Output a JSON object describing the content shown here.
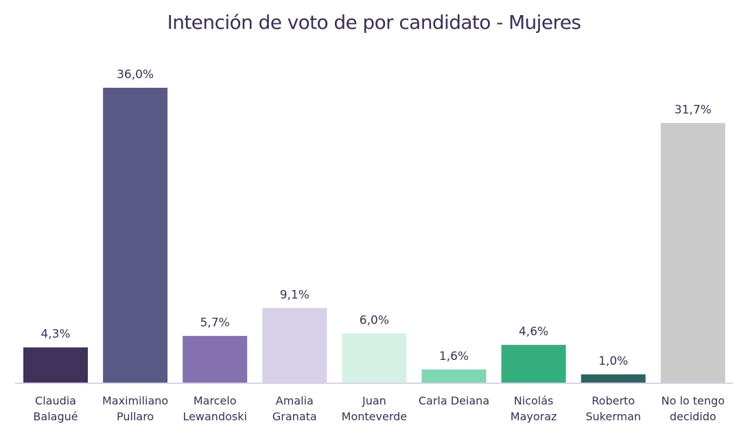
{
  "chart_data": {
    "type": "bar",
    "title": "Intención de voto de por candidato - Mujeres",
    "xlabel": "",
    "ylabel": "",
    "ylim": [
      0,
      36
    ],
    "grid": false,
    "legend": "none",
    "categories": [
      [
        "Claudia",
        "Balagué"
      ],
      [
        "Maximiliano",
        "Pullaro"
      ],
      [
        "Marcelo",
        "Lewandoski"
      ],
      [
        "Amalia",
        "Granata"
      ],
      [
        "Juan",
        "Monteverde"
      ],
      [
        "Carla Deiana"
      ],
      [
        "Nicolás",
        "Mayoraz"
      ],
      [
        "Roberto",
        "Sukerman"
      ],
      [
        "No lo tengo",
        "decidido"
      ]
    ],
    "values": [
      4.3,
      36.0,
      5.7,
      9.1,
      6.0,
      1.6,
      4.6,
      1.0,
      31.7
    ],
    "value_labels": [
      "4,3%",
      "36,0%",
      "5,7%",
      "9,1%",
      "6,0%",
      "1,6%",
      "4,6%",
      "1,0%",
      "31,7%"
    ],
    "colors": [
      "#41325c",
      "#5a5a87",
      "#8570b0",
      "#d7d0e8",
      "#d5f1e6",
      "#7fd6b2",
      "#35ae7d",
      "#2e6461",
      "#cacaca"
    ],
    "axis_color": "#d9d3ea"
  }
}
